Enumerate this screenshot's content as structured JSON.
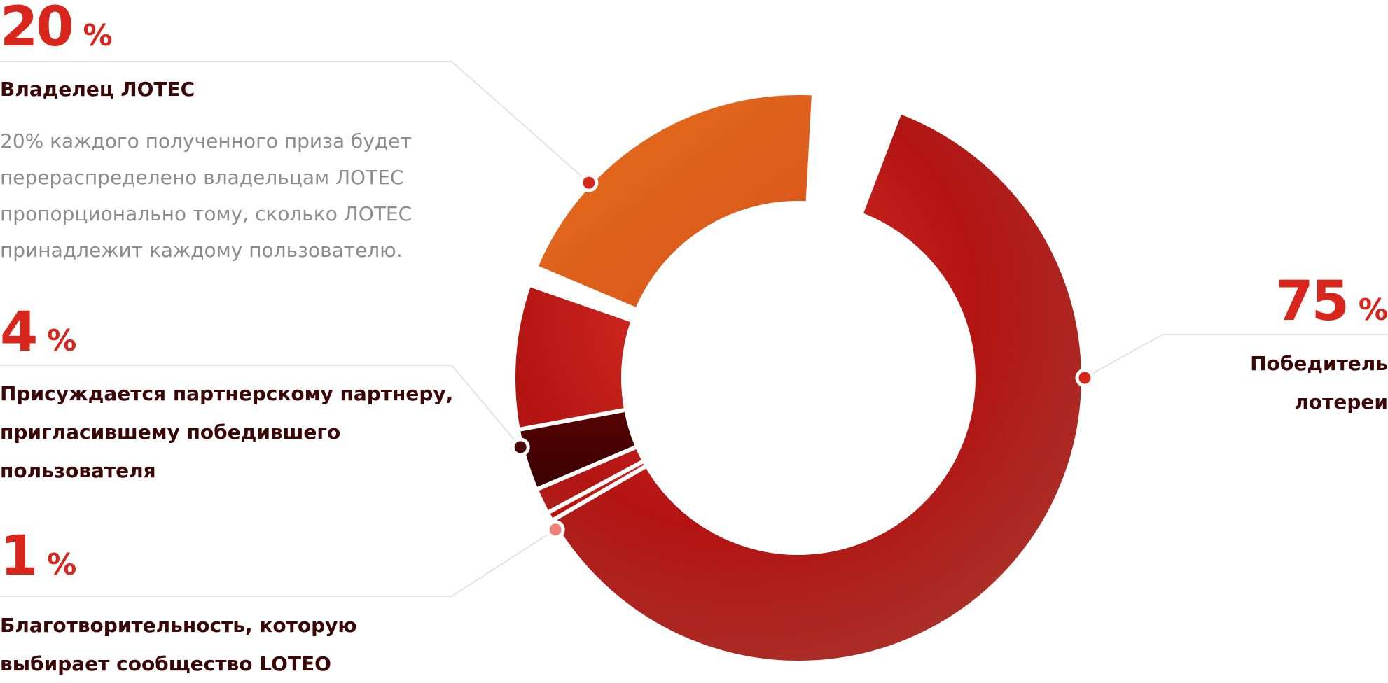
{
  "chart_data": {
    "type": "pie",
    "series": [
      {
        "name": "Победитель лотереи",
        "values": [
          75
        ]
      },
      {
        "name": "Владелец ЛОТЕС",
        "values": [
          20
        ]
      },
      {
        "name": "Присуждается партнерскому партнеру, пригласившему победившего пользователя",
        "values": [
          4
        ]
      },
      {
        "name": "Благотворительность, которую выбирает сообщество LOTEO",
        "values": [
          1
        ]
      }
    ],
    "slices": [
      {
        "key": "winner",
        "value": 75,
        "color": "#c1201a",
        "dot": "#d9261c"
      },
      {
        "key": "owner",
        "value": 20,
        "color": "#e2621a",
        "dot": "#d9261c"
      },
      {
        "key": "partner",
        "value": 4,
        "color": "#4a0202",
        "dot": "#4a0202"
      },
      {
        "key": "charity",
        "value": 1,
        "color": "#c41410",
        "dot": "#ee8078"
      }
    ],
    "donut": true,
    "legend": "annotations"
  },
  "annotations": {
    "owner": {
      "pct": "20",
      "sign": "%",
      "label": "Владелец ЛОТЕС",
      "desc": "20% каждого полученного приза будет перераспределено владельцам ЛОТЕС пропорционально тому, сколько ЛОТЕС принадлежит каждому пользователю."
    },
    "partner": {
      "pct": "4",
      "sign": "%",
      "label": "Присуждается партнерскому партнеру, пригласившему победившего пользователя"
    },
    "charity": {
      "pct": "1",
      "sign": "%",
      "label": "Благотворительность, которую выбирает сообщество LOTEO"
    },
    "winner": {
      "pct": "75",
      "sign": "%",
      "label": "Победитель лотереи"
    }
  },
  "colors": {
    "accent": "#d9261c",
    "label_text": "#3a0606",
    "description_text": "#8c8c8c",
    "leader_line": "#e3e3e3"
  }
}
